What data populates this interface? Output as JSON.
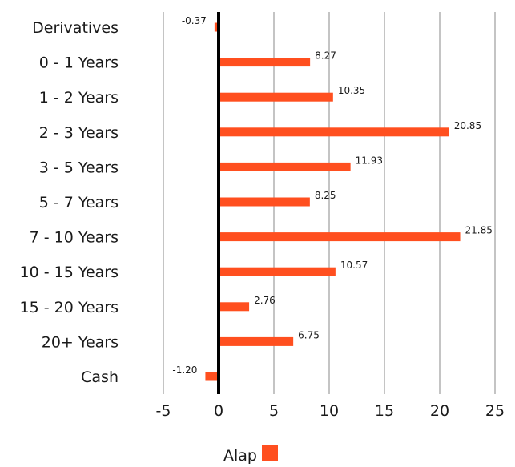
{
  "chart_data": {
    "type": "bar",
    "orientation": "horizontal",
    "categories": [
      "Derivatives",
      "0 - 1 Years",
      "1 - 2 Years",
      "2 - 3 Years",
      "3 - 5 Years",
      "5 - 7 Years",
      "7 - 10 Years",
      "10 - 15 Years",
      "15 - 20 Years",
      "20+ Years",
      "Cash"
    ],
    "series": [
      {
        "name": "Alap",
        "values": [
          -0.37,
          8.27,
          10.35,
          20.85,
          11.93,
          8.25,
          21.85,
          10.57,
          2.76,
          6.75,
          -1.2
        ],
        "labels": [
          "-0.37",
          "8.27",
          "10.35",
          "20.85",
          "11.93",
          "8.25",
          "21.85",
          "10.57",
          "2.76",
          "6.75",
          "-1.20"
        ],
        "color": "#ff4f1f"
      }
    ],
    "xlim": [
      -5,
      25
    ],
    "xticks": [
      "-5",
      "0",
      "5",
      "10",
      "15",
      "20",
      "25"
    ],
    "grid": true,
    "legend": "bottom-center",
    "zero_line_color": "#000000",
    "gridline_color": "#c4c4c4"
  }
}
